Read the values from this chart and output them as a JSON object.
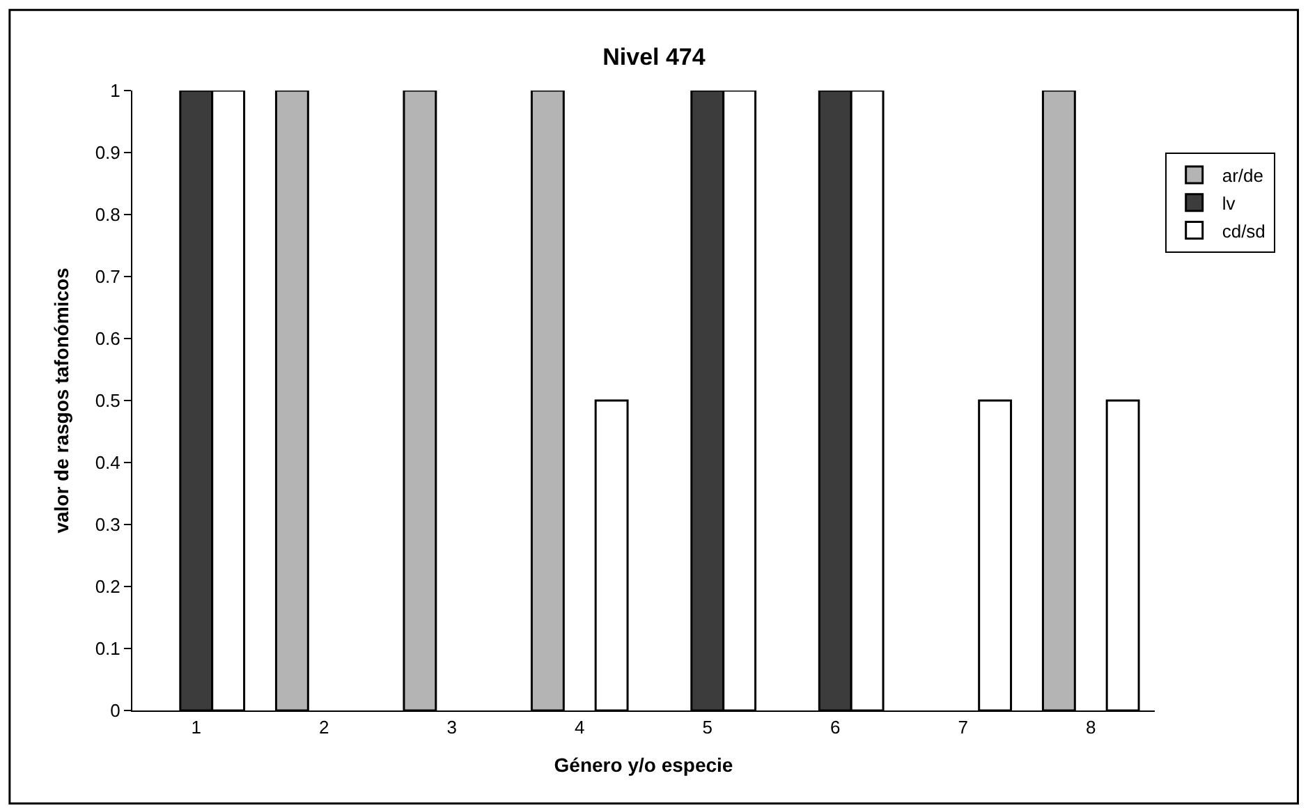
{
  "chart_data": {
    "type": "bar",
    "title": "Nivel 474",
    "xlabel": "Género y/o especie",
    "ylabel": "valor de rasgos tafonómicos",
    "categories": [
      "1",
      "2",
      "3",
      "4",
      "5",
      "6",
      "7",
      "8"
    ],
    "series": [
      {
        "name": "ar/de",
        "color": "#b4b4b4",
        "values": [
          null,
          1,
          1,
          1,
          null,
          null,
          null,
          1
        ]
      },
      {
        "name": "lv",
        "color": "#3c3c3c",
        "values": [
          1,
          null,
          null,
          null,
          1,
          1,
          null,
          null
        ]
      },
      {
        "name": "cd/sd",
        "color": "#ffffff",
        "values": [
          1,
          null,
          null,
          0.5,
          1,
          1,
          0.5,
          0.5
        ]
      }
    ],
    "ylim": [
      0,
      1
    ],
    "yticks": [
      0,
      0.1,
      0.2,
      0.3,
      0.4,
      0.5,
      0.6,
      0.7,
      0.8,
      0.9,
      1
    ],
    "legend": "right"
  }
}
